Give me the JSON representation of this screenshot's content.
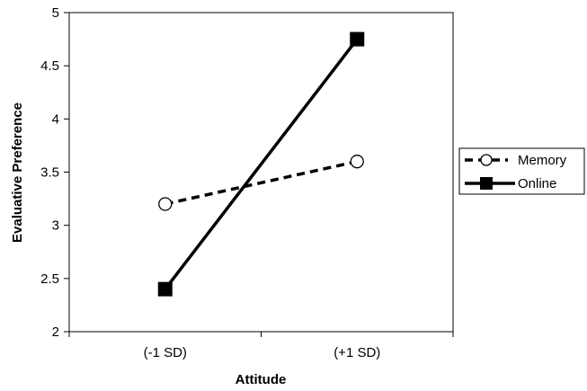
{
  "chart_data": {
    "type": "line",
    "title": "",
    "xlabel": "Attitude",
    "ylabel": "Evaluative Preference",
    "categories": [
      "(-1 SD)",
      "(+1 SD)"
    ],
    "ylim": [
      2,
      5
    ],
    "yticks": [
      "2",
      "2.5",
      "3",
      "3.5",
      "4",
      "4.5",
      "5"
    ],
    "grid": false,
    "legend_position": "right",
    "series": [
      {
        "name": "Memory",
        "values": [
          3.2,
          3.6
        ],
        "line_style": "dashed",
        "marker": "open-circle",
        "color": "#000000"
      },
      {
        "name": "Online",
        "values": [
          2.4,
          4.75
        ],
        "line_style": "solid",
        "marker": "filled-square",
        "color": "#000000"
      }
    ]
  }
}
